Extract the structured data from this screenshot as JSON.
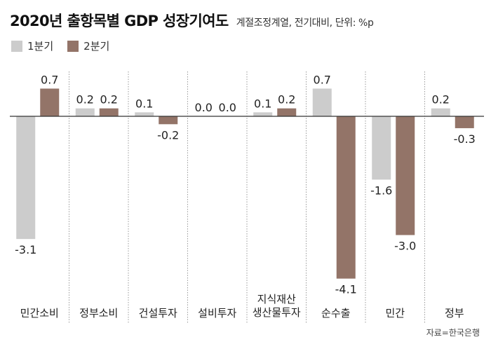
{
  "header": {
    "title": "2020년 출항목별 GDP 성장기여도",
    "subtitle": "계절조정계열, 전기대비, 단위: %p"
  },
  "legend": [
    {
      "label": "1분기",
      "color": "#cccccc"
    },
    {
      "label": "2분기",
      "color": "#937468"
    }
  ],
  "source": "자료=한국은행",
  "chart_data": {
    "type": "bar",
    "title": "2020년 출항목별 GDP 성장기여도",
    "subtitle": "계절조정계열, 전기대비, 단위: %p",
    "categories": [
      "민간소비",
      "정부소비",
      "건설투자",
      "설비투자",
      "지식재산\n생산물투자",
      "순수출",
      "민간",
      "정부"
    ],
    "series": [
      {
        "name": "1분기",
        "color": "#cccccc",
        "values": [
          -3.1,
          0.2,
          0.1,
          0.0,
          0.1,
          0.7,
          -1.6,
          0.2
        ],
        "labels": [
          "-3.1",
          "0.2",
          "0.1",
          "0.0",
          "0.1",
          "0.7",
          "-1.6",
          "0.2"
        ]
      },
      {
        "name": "2분기",
        "color": "#937468",
        "values": [
          0.7,
          0.2,
          -0.2,
          0.0,
          0.2,
          -4.1,
          -3.0,
          -0.3
        ],
        "labels": [
          "0.7",
          "0.2",
          "-0.2",
          "0.0",
          "0.2",
          "-4.1",
          "-3.0",
          "-0.3"
        ]
      }
    ],
    "ylim": [
      -4.4,
      1.1
    ],
    "grid": false,
    "legend_position": "top-left"
  }
}
